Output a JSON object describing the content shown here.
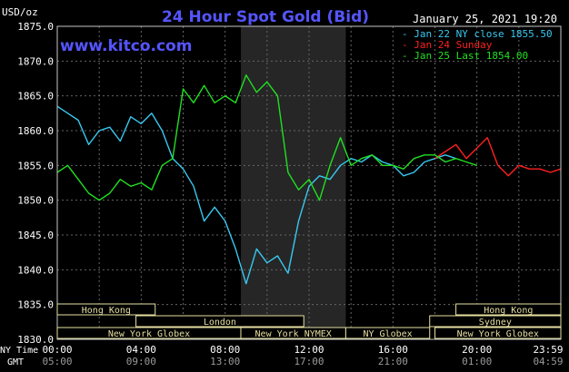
{
  "header": {
    "title": "24 Hour Spot Gold (Bid)",
    "datetime": "January 25, 2021 19:20",
    "unit": "USD/oz",
    "watermark": "www.kitco.com"
  },
  "legend": [
    {
      "label": "Jan 22 NY close 1855.50",
      "color": "#38c8f0"
    },
    {
      "label": "Jan 24 Sunday",
      "color": "#ff2020"
    },
    {
      "label": "Jan 25 Last 1854.00",
      "color": "#20e020"
    }
  ],
  "sessions": [
    {
      "label": "Hong Kong",
      "start": "00:00",
      "end": "04:40",
      "row": 0
    },
    {
      "label": "London",
      "start": "03:45",
      "end": "11:45",
      "row": 1
    },
    {
      "label": "New York Globex",
      "start": "00:00",
      "end": "08:45",
      "row": 2
    },
    {
      "label": "New York NYMEX",
      "start": "08:45",
      "end": "13:45",
      "row": 2
    },
    {
      "label": "NY Globex",
      "start": "13:45",
      "end": "17:45",
      "row": 2
    },
    {
      "label": "Hong Kong",
      "start": "19:00",
      "end": "24:00",
      "row": 0
    },
    {
      "label": "Sydney",
      "start": "17:45",
      "end": "24:00",
      "row": 1
    },
    {
      "label": "New York Globex",
      "start": "18:00",
      "end": "24:00",
      "row": 2
    }
  ],
  "axis_rows": {
    "ny_label": "NY Time",
    "gmt_label": "GMT",
    "ny_ticks": [
      "00:00",
      "04:00",
      "08:00",
      "12:00",
      "16:00",
      "20:00",
      "23:59"
    ],
    "gmt_ticks": [
      "05:00",
      "09:00",
      "13:00",
      "17:00",
      "21:00",
      "01:00",
      "04:59"
    ]
  },
  "chart_data": {
    "type": "line",
    "x_unit": "NY time (hours)",
    "xlim": [
      0,
      24
    ],
    "ylim": [
      1830,
      1875
    ],
    "yticks": [
      "1875.0",
      "1870.0",
      "1865.0",
      "1860.0",
      "1855.0",
      "1850.0",
      "1845.0",
      "1840.0",
      "1835.0",
      "1830.0"
    ],
    "shaded_region": [
      8.75,
      13.75
    ],
    "series": [
      {
        "name": "Jan 22 NY close 1855.50",
        "color": "#38c8f0",
        "points": [
          [
            0,
            1863.5
          ],
          [
            0.5,
            1862.5
          ],
          [
            1,
            1861.5
          ],
          [
            1.5,
            1858
          ],
          [
            2,
            1860
          ],
          [
            2.5,
            1860.5
          ],
          [
            3,
            1858.5
          ],
          [
            3.5,
            1862
          ],
          [
            4,
            1861
          ],
          [
            4.5,
            1862.5
          ],
          [
            5,
            1860
          ],
          [
            5.5,
            1856
          ],
          [
            6,
            1854.5
          ],
          [
            6.5,
            1852
          ],
          [
            7,
            1847
          ],
          [
            7.5,
            1849
          ],
          [
            8,
            1847
          ],
          [
            8.5,
            1843
          ],
          [
            9,
            1838
          ],
          [
            9.5,
            1843
          ],
          [
            10,
            1841
          ],
          [
            10.5,
            1842
          ],
          [
            11,
            1839.5
          ],
          [
            11.5,
            1847
          ],
          [
            12,
            1852
          ],
          [
            12.5,
            1853.5
          ],
          [
            13,
            1853
          ],
          [
            13.5,
            1855
          ],
          [
            14,
            1856
          ],
          [
            14.5,
            1855.5
          ],
          [
            15,
            1856.5
          ],
          [
            15.5,
            1855.5
          ],
          [
            16,
            1855
          ],
          [
            16.5,
            1853.5
          ],
          [
            17,
            1854
          ],
          [
            17.5,
            1855.5
          ],
          [
            18,
            1856
          ],
          [
            18.5,
            1856.5
          ],
          [
            19,
            1856
          ]
        ]
      },
      {
        "name": "Jan 24 Sunday",
        "color": "#ff2020",
        "points": [
          [
            18,
            1856
          ],
          [
            18.5,
            1857
          ],
          [
            19,
            1858
          ],
          [
            19.5,
            1856
          ],
          [
            20,
            1857.5
          ],
          [
            20.5,
            1859
          ],
          [
            21,
            1855
          ],
          [
            21.5,
            1853.5
          ],
          [
            22,
            1855
          ],
          [
            22.5,
            1854.5
          ],
          [
            23,
            1854.5
          ],
          [
            23.5,
            1854
          ],
          [
            24,
            1854.5
          ]
        ]
      },
      {
        "name": "Jan 25 Last 1854.00",
        "color": "#20e020",
        "points": [
          [
            0,
            1854
          ],
          [
            0.5,
            1855
          ],
          [
            1,
            1853
          ],
          [
            1.5,
            1851
          ],
          [
            2,
            1850
          ],
          [
            2.5,
            1851
          ],
          [
            3,
            1853
          ],
          [
            3.5,
            1852
          ],
          [
            4,
            1852.5
          ],
          [
            4.5,
            1851.5
          ],
          [
            5,
            1855
          ],
          [
            5.5,
            1856
          ],
          [
            6,
            1866
          ],
          [
            6.5,
            1864
          ],
          [
            7,
            1866.5
          ],
          [
            7.5,
            1864
          ],
          [
            8,
            1865
          ],
          [
            8.5,
            1864
          ],
          [
            9,
            1868
          ],
          [
            9.5,
            1865.5
          ],
          [
            10,
            1867
          ],
          [
            10.5,
            1865
          ],
          [
            11,
            1854
          ],
          [
            11.5,
            1851.5
          ],
          [
            12,
            1853
          ],
          [
            12.5,
            1850
          ],
          [
            13,
            1855
          ],
          [
            13.5,
            1859
          ],
          [
            14,
            1855
          ],
          [
            14.5,
            1856
          ],
          [
            15,
            1856.5
          ],
          [
            15.5,
            1855
          ],
          [
            16,
            1855
          ],
          [
            16.5,
            1854.5
          ],
          [
            17,
            1856
          ],
          [
            17.5,
            1856.5
          ],
          [
            18,
            1856.5
          ],
          [
            18.5,
            1855.5
          ],
          [
            19,
            1856
          ],
          [
            19.5,
            1855.5
          ],
          [
            20,
            1855
          ]
        ]
      }
    ]
  }
}
